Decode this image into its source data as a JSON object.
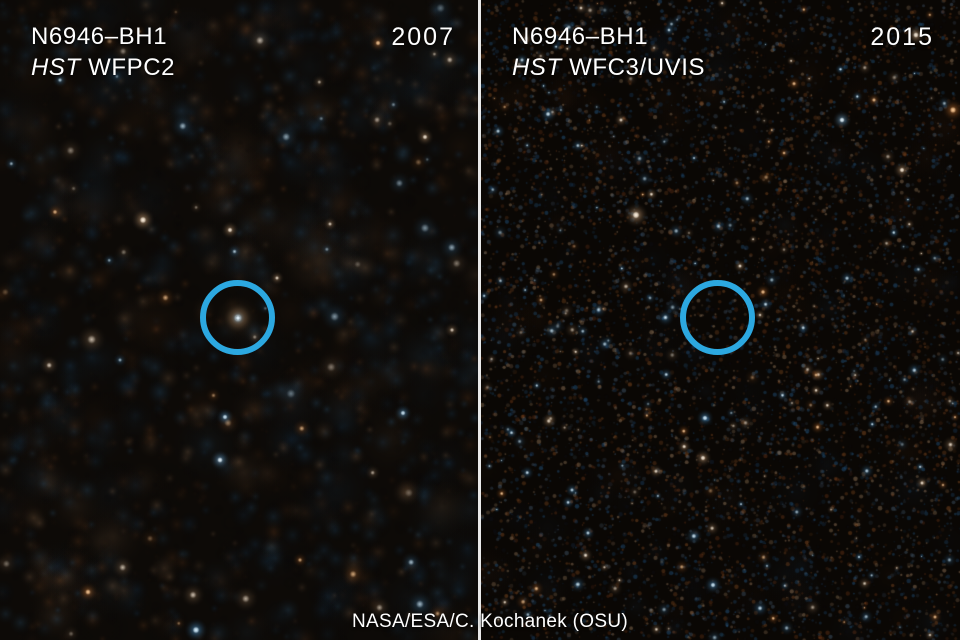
{
  "figure": {
    "credit": "NASA/ESA/C. Kochanek (OSU)",
    "annotation_circle_color": "#2ca8e0",
    "divider_color": "#e9e9e9"
  },
  "panels": [
    {
      "target": "N6946–BH1",
      "telescope": "HST",
      "instrument": "WFPC2",
      "year": "2007"
    },
    {
      "target": "N6946–BH1",
      "telescope": "HST",
      "instrument": "WFC3/UVIS",
      "year": "2015"
    }
  ]
}
